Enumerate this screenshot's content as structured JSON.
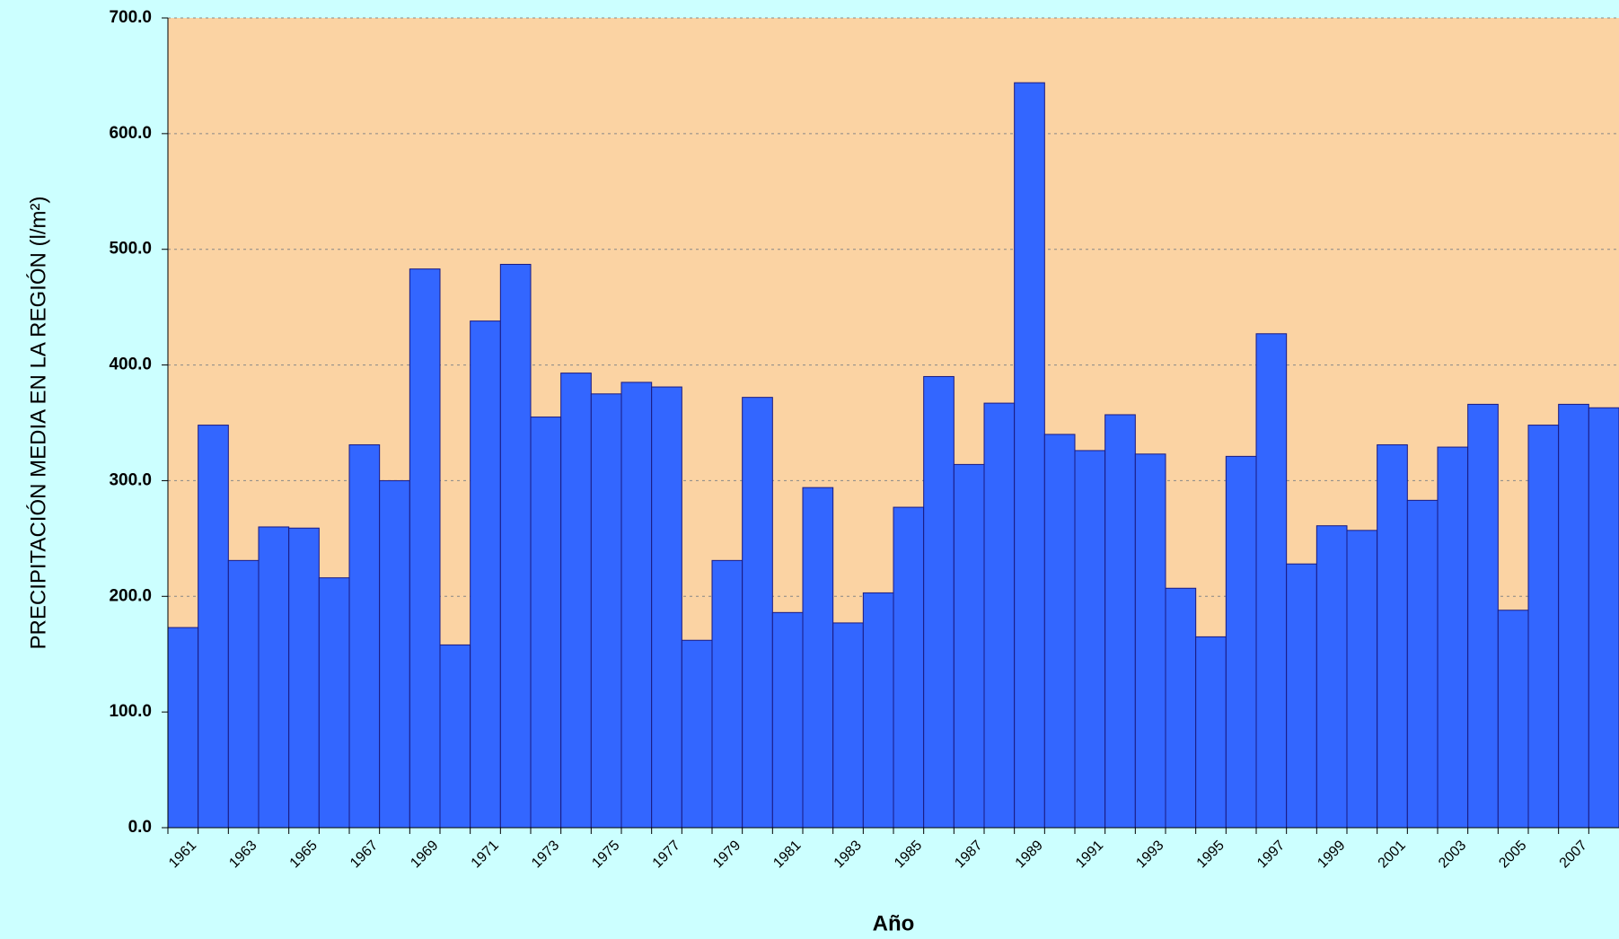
{
  "chart_data": {
    "type": "bar",
    "y_label": "PRECIPITACIÓN MEDIA EN LA REGIÓN (l/m²)",
    "x_label": "Año",
    "categories": [
      "1961",
      null,
      "1963",
      null,
      "1965",
      null,
      "1967",
      null,
      "1969",
      null,
      "1971",
      null,
      "1973",
      null,
      "1975",
      null,
      "1977",
      null,
      "1979",
      null,
      "1981",
      null,
      "1983",
      null,
      "1985",
      null,
      "1987",
      null,
      "1989",
      null,
      "1991",
      null,
      "1993",
      null,
      "1995",
      null,
      "1997",
      null,
      "1999",
      null,
      "2001",
      null,
      "2003",
      null,
      "2005",
      null,
      "2007",
      null
    ],
    "values": [
      173,
      348,
      231,
      260,
      259,
      216,
      331,
      300,
      483,
      158,
      438,
      487,
      355,
      393,
      375,
      385,
      381,
      162,
      231,
      372,
      186,
      294,
      177,
      203,
      277,
      390,
      314,
      367,
      644,
      340,
      326,
      357,
      323,
      207,
      165,
      321,
      427,
      228,
      261,
      257,
      331,
      283,
      329,
      366,
      188,
      348,
      366,
      363
    ],
    "color": "#3366ff",
    "ylim": [
      0,
      700
    ],
    "yticks": [
      {
        "value": 0,
        "label": "0.0"
      },
      {
        "value": 100,
        "label": "100.0"
      },
      {
        "value": 200,
        "label": "200.0"
      },
      {
        "value": 300,
        "label": "300.0"
      },
      {
        "value": 400,
        "label": "400.0"
      },
      {
        "value": 500,
        "label": "500.0"
      },
      {
        "value": 600,
        "label": "600.0"
      },
      {
        "value": 700,
        "label": "700.0"
      }
    ],
    "grid": true
  }
}
